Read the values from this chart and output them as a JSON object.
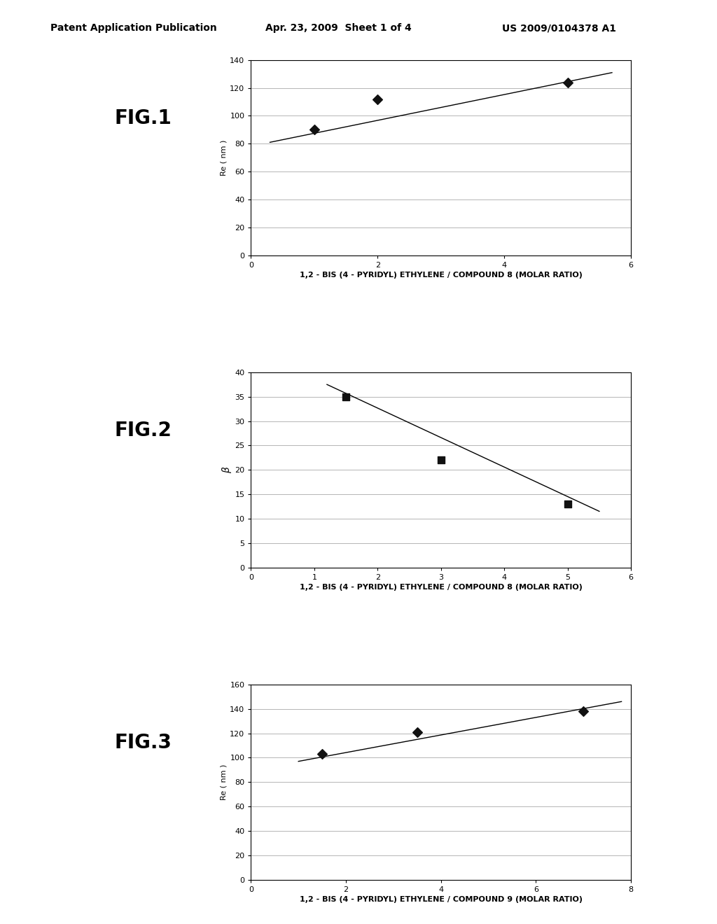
{
  "header_left": "Patent Application Publication",
  "header_mid": "Apr. 23, 2009  Sheet 1 of 4",
  "header_right": "US 2009/0104378 A1",
  "fig1": {
    "label": "FIG.1",
    "data_x": [
      1.0,
      2.0,
      5.0
    ],
    "data_y": [
      90,
      112,
      124
    ],
    "line_x": [
      0.3,
      5.7
    ],
    "line_y": [
      81,
      131
    ],
    "marker": "D",
    "xlabel": "1,2 - BIS (4 - PYRIDYL) ETHYLENE / COMPOUND 8 (MOLAR RATIO)",
    "ylabel": "Re ( nm )",
    "xlim": [
      0,
      6
    ],
    "ylim": [
      0,
      140
    ],
    "xticks": [
      0,
      2,
      4,
      6
    ],
    "yticks": [
      0,
      20,
      40,
      60,
      80,
      100,
      120,
      140
    ]
  },
  "fig2": {
    "label": "FIG.2",
    "data_x": [
      1.5,
      3.0,
      5.0
    ],
    "data_y": [
      35,
      22,
      13
    ],
    "line_x": [
      1.2,
      5.5
    ],
    "line_y": [
      37.5,
      11.5
    ],
    "marker": "s",
    "xlabel": "1,2 - BIS (4 - PYRIDYL) ETHYLENE / COMPOUND 8 (MOLAR RATIO)",
    "ylabel": "β",
    "xlim": [
      0,
      6
    ],
    "ylim": [
      0,
      40
    ],
    "xticks": [
      0,
      1,
      2,
      3,
      4,
      5,
      6
    ],
    "yticks": [
      0,
      5,
      10,
      15,
      20,
      25,
      30,
      35,
      40
    ]
  },
  "fig3": {
    "label": "FIG.3",
    "data_x": [
      1.5,
      3.5,
      7.0
    ],
    "data_y": [
      103,
      121,
      138
    ],
    "line_x": [
      1.0,
      7.8
    ],
    "line_y": [
      97,
      146
    ],
    "marker": "D",
    "xlabel": "1,2 - BIS (4 - PYRIDYL) ETHYLENE / COMPOUND 9 (MOLAR RATIO)",
    "ylabel": "Re ( nm )",
    "xlim": [
      0,
      8
    ],
    "ylim": [
      0,
      160
    ],
    "xticks": [
      0,
      2,
      4,
      6,
      8
    ],
    "yticks": [
      0,
      20,
      40,
      60,
      80,
      100,
      120,
      140,
      160
    ]
  },
  "bg_color": "#ffffff",
  "plot_bg": "#ffffff",
  "line_color": "#000000",
  "marker_color": "#111111",
  "marker_size": 7,
  "label_fontsize": 8,
  "tick_fontsize": 8,
  "fig_label_fontsize": 20,
  "header_fontsize": 10,
  "grid_color": "#aaaaaa",
  "grid_linewidth": 0.6
}
